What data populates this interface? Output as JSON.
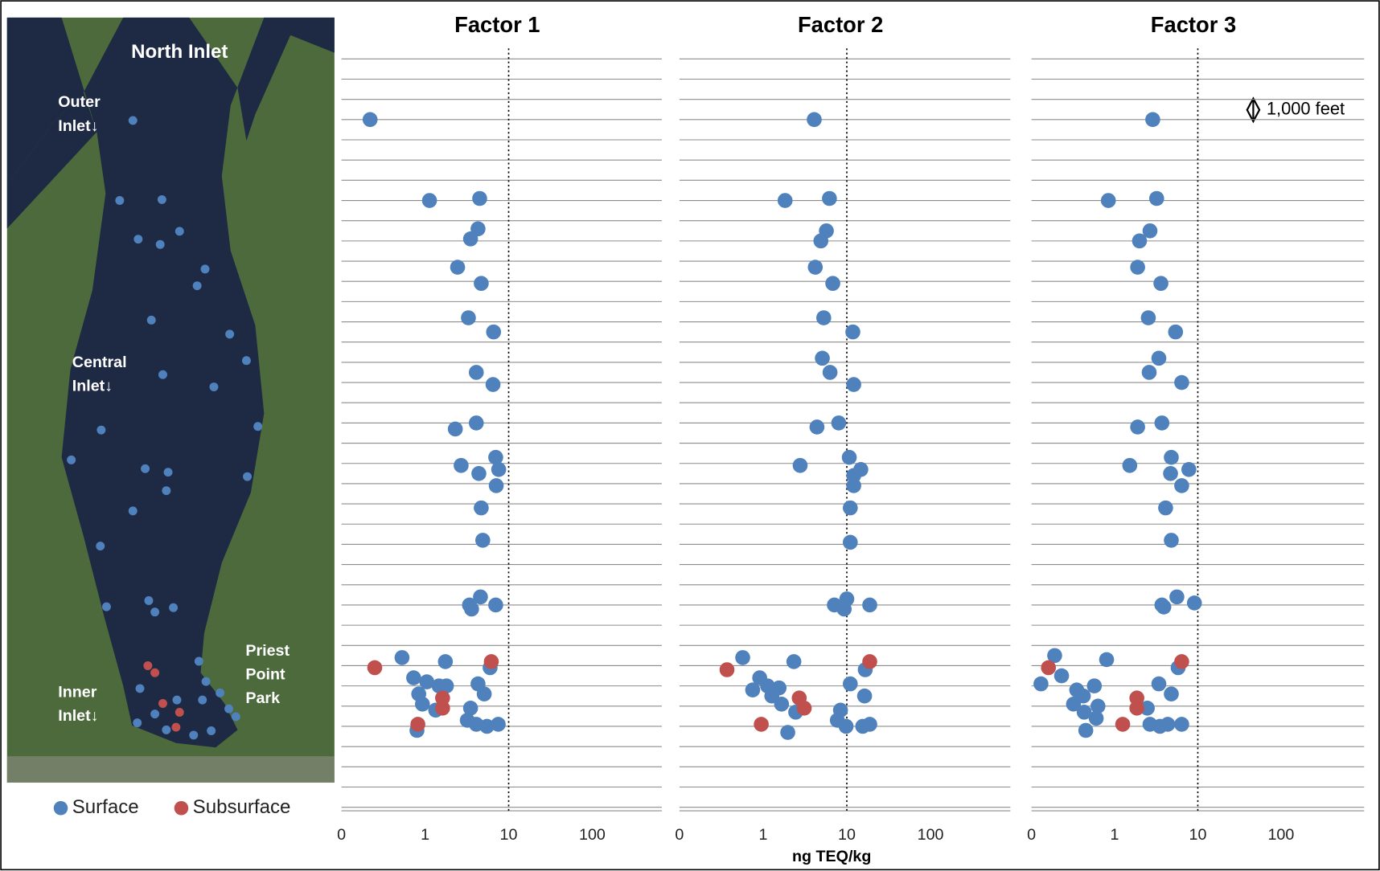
{
  "map": {
    "title": "North Inlet",
    "labels": [
      [
        "Outer",
        "Inlet↓"
      ],
      [
        "Central",
        "Inlet↓"
      ],
      [
        "Inner",
        "Inlet↓"
      ],
      [
        "Priest",
        "Point",
        "Park"
      ]
    ]
  },
  "scale_note": "1,000 feet",
  "chart_data": [
    {
      "type": "scatter",
      "title": "Factor 1",
      "log_x": true,
      "reference_line": 10,
      "xlim": [
        0.1,
        680
      ],
      "xticks": [
        {
          "value": 0.1,
          "label": "0"
        },
        1,
        10,
        100
      ],
      "ylim": [
        37,
        0
      ],
      "yticks": [
        0,
        1,
        2,
        3,
        4,
        5,
        6,
        7,
        8,
        9,
        10,
        11,
        12,
        13,
        14,
        15,
        16,
        17,
        18,
        19,
        20,
        21,
        22,
        23,
        24,
        25,
        26,
        27,
        28,
        29,
        30,
        31,
        32,
        33,
        34,
        35,
        36,
        37
      ],
      "grid": true,
      "series": [
        {
          "name": "Surface",
          "color": "#4f81bd",
          "x": [
            0.22,
            1.13,
            4.5,
            4.3,
            3.5,
            2.45,
            4.7,
            3.3,
            6.6,
            4.1,
            6.5,
            2.3,
            4.1,
            7.0,
            2.7,
            4.4,
            7.6,
            7.1,
            4.7,
            4.9,
            4.6,
            3.4,
            3.6,
            7.0,
            0.53,
            1.75,
            6.0,
            0.73,
            1.05,
            1.47,
            1.8,
            4.3,
            0.84,
            0.93,
            5.1,
            1.34,
            3.5,
            3.2,
            4.1,
            5.5,
            7.5,
            0.8
          ],
          "y": [
            3.0,
            7.0,
            6.9,
            8.4,
            8.9,
            10.3,
            11.1,
            12.8,
            13.5,
            15.5,
            16.1,
            18.3,
            18.0,
            19.7,
            20.1,
            20.5,
            20.3,
            21.1,
            22.2,
            23.8,
            26.6,
            27.0,
            27.2,
            27.0,
            29.6,
            29.8,
            30.1,
            30.6,
            30.8,
            31.0,
            31.0,
            30.9,
            31.4,
            31.9,
            31.4,
            32.2,
            32.1,
            32.7,
            32.9,
            33.0,
            32.9,
            33.2
          ]
        },
        {
          "name": "Subsurface",
          "color": "#c0504d",
          "x": [
            0.25,
            6.2,
            1.62,
            1.62,
            0.82
          ],
          "y": [
            30.1,
            29.8,
            31.6,
            32.1,
            32.9
          ]
        }
      ]
    },
    {
      "type": "scatter",
      "title": "Factor 2",
      "x_label": "ng TEQ/kg",
      "log_x": true,
      "reference_line": 10,
      "xlim": [
        0.1,
        900
      ],
      "xticks": [
        {
          "value": 0.1,
          "label": "0"
        },
        1,
        10,
        100
      ],
      "ylim": [
        37,
        0
      ],
      "yticks": [
        0,
        1,
        2,
        3,
        4,
        5,
        6,
        7,
        8,
        9,
        10,
        11,
        12,
        13,
        14,
        15,
        16,
        17,
        18,
        19,
        20,
        21,
        22,
        23,
        24,
        25,
        26,
        27,
        28,
        29,
        30,
        31,
        32,
        33,
        34,
        35,
        36,
        37
      ],
      "grid": true,
      "series": [
        {
          "color": "#4f81bd",
          "x": [
            4.08,
            1.83,
            6.2,
            5.7,
            4.9,
            4.2,
            6.8,
            5.3,
            11.8,
            5.1,
            6.3,
            12.1,
            4.4,
            8.0,
            10.7,
            2.77,
            14.7,
            12.1,
            12.1,
            11.0,
            11.0,
            10.0,
            7.1,
            9.3,
            18.8,
            0.57,
            2.33,
            16.6,
            0.91,
            1.13,
            0.75,
            1.55,
            1.27,
            1.66,
            11.0,
            16.3,
            2.45,
            8.4,
            7.7,
            9.8,
            15.5,
            18.8,
            1.97
          ],
          "y": [
            3.0,
            7.0,
            6.9,
            8.5,
            9.0,
            10.3,
            11.1,
            12.8,
            13.5,
            14.8,
            15.5,
            16.1,
            18.2,
            18.0,
            19.7,
            20.1,
            20.3,
            20.6,
            21.1,
            22.2,
            23.9,
            26.7,
            27.0,
            27.2,
            27.0,
            29.6,
            29.8,
            30.2,
            30.6,
            31.0,
            31.2,
            31.1,
            31.5,
            31.9,
            30.9,
            31.5,
            32.3,
            32.2,
            32.7,
            33.0,
            33.0,
            32.9,
            33.3
          ]
        },
        {
          "color": "#c0504d",
          "x": [
            0.37,
            18.8,
            2.7,
            3.1,
            0.95
          ],
          "y": [
            30.2,
            29.8,
            31.6,
            32.1,
            32.9
          ]
        }
      ]
    },
    {
      "type": "scatter",
      "title": "Factor 3",
      "log_x": true,
      "reference_line": 10,
      "xlim": [
        0.1,
        1000
      ],
      "xticks": [
        {
          "value": 0.1,
          "label": "0"
        },
        1,
        10,
        100
      ],
      "ylim": [
        37,
        0
      ],
      "yticks": [
        0,
        1,
        2,
        3,
        4,
        5,
        6,
        7,
        8,
        9,
        10,
        11,
        12,
        13,
        14,
        15,
        16,
        17,
        18,
        19,
        20,
        21,
        22,
        23,
        24,
        25,
        26,
        27,
        28,
        29,
        30,
        31,
        32,
        33,
        34,
        35,
        36,
        37
      ],
      "grid": true,
      "series": [
        {
          "color": "#4f81bd",
          "x": [
            2.87,
            0.84,
            3.2,
            2.66,
            1.99,
            1.89,
            3.6,
            2.54,
            5.4,
            3.4,
            2.6,
            6.4,
            1.89,
            3.7,
            4.8,
            1.52,
            4.7,
            7.8,
            6.4,
            4.1,
            4.8,
            5.6,
            3.7,
            3.9,
            9.1,
            0.19,
            0.8,
            5.8,
            0.23,
            0.13,
            0.35,
            0.42,
            0.57,
            3.4,
            4.8,
            0.32,
            0.63,
            0.43,
            0.6,
            2.47,
            0.45,
            2.66,
            3.5,
            4.35,
            6.4
          ],
          "y": [
            3.0,
            7.0,
            6.9,
            8.5,
            9.0,
            10.3,
            11.1,
            12.8,
            13.5,
            14.8,
            15.5,
            16.0,
            18.2,
            18.0,
            19.7,
            20.1,
            20.5,
            20.3,
            21.1,
            22.2,
            23.8,
            26.6,
            27.0,
            27.1,
            26.9,
            29.5,
            29.7,
            30.1,
            30.5,
            30.9,
            31.2,
            31.5,
            31.0,
            30.9,
            31.4,
            31.9,
            32.0,
            32.3,
            32.6,
            32.1,
            33.2,
            32.9,
            33.0,
            32.9,
            32.9
          ]
        },
        {
          "color": "#c0504d",
          "x": [
            0.16,
            6.4,
            1.85,
            1.85,
            1.25
          ],
          "y": [
            30.1,
            29.8,
            31.6,
            32.1,
            32.9
          ]
        }
      ]
    }
  ]
}
